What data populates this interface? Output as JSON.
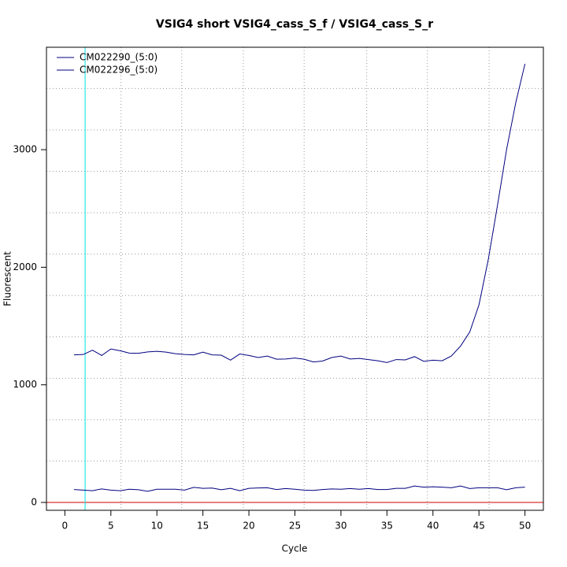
{
  "chart_data": {
    "type": "line",
    "title": "VSIG4 short VSIG4_cass_S_f / VSIG4_cass_S_r",
    "x_label": "Cycle",
    "y_label": "Fluorescent",
    "x": [
      1,
      2,
      3,
      4,
      5,
      6,
      7,
      8,
      9,
      10,
      11,
      12,
      13,
      14,
      15,
      16,
      17,
      18,
      19,
      20,
      21,
      22,
      23,
      24,
      25,
      26,
      27,
      28,
      29,
      30,
      31,
      32,
      33,
      34,
      35,
      36,
      37,
      38,
      39,
      40,
      41,
      42,
      43,
      44,
      45,
      46,
      47,
      48,
      49,
      50
    ],
    "series": [
      {
        "name": "CM022290_(5:0)",
        "color": "#00007f",
        "values": [
          110,
          105,
          100,
          115,
          105,
          100,
          112,
          108,
          95,
          112,
          112,
          112,
          105,
          128,
          120,
          122,
          108,
          120,
          100,
          120,
          123,
          125,
          110,
          118,
          112,
          105,
          102,
          110,
          115,
          112,
          118,
          112,
          118,
          110,
          110,
          120,
          120,
          140,
          130,
          133,
          130,
          125,
          140,
          118,
          125,
          125,
          125,
          108,
          125,
          130
        ]
      },
      {
        "name": "CM022296_(5:0)",
        "color": "#00007f",
        "values": [
          1255,
          1258,
          1295,
          1250,
          1305,
          1290,
          1270,
          1268,
          1280,
          1285,
          1278,
          1265,
          1258,
          1255,
          1278,
          1255,
          1252,
          1210,
          1262,
          1250,
          1232,
          1245,
          1218,
          1220,
          1228,
          1218,
          1195,
          1202,
          1232,
          1245,
          1220,
          1225,
          1215,
          1205,
          1190,
          1215,
          1212,
          1240,
          1200,
          1210,
          1205,
          1245,
          1330,
          1450,
          1680,
          2060,
          2520,
          3000,
          3400,
          3730
        ]
      }
    ],
    "xlim": [
      -2,
      52
    ],
    "ylim": [
      -67,
      3871
    ],
    "xticks": [
      0,
      5,
      10,
      15,
      20,
      25,
      30,
      35,
      40,
      45,
      50
    ],
    "yticks": [
      0,
      1000,
      2000,
      3000
    ],
    "x_grid": [
      6.1,
      12.7,
      19.4,
      26.0,
      32.8,
      39.4,
      46.1
    ],
    "y_grid": [
      352,
      704,
      1056,
      1408,
      1760,
      2112,
      2464,
      2816,
      3168,
      3520
    ],
    "grid": true,
    "threshold": {
      "value": 0,
      "color": "#cc0000"
    },
    "marker_line": {
      "value": 2.2,
      "color": "#00e5e5"
    },
    "legend": "top-left"
  }
}
